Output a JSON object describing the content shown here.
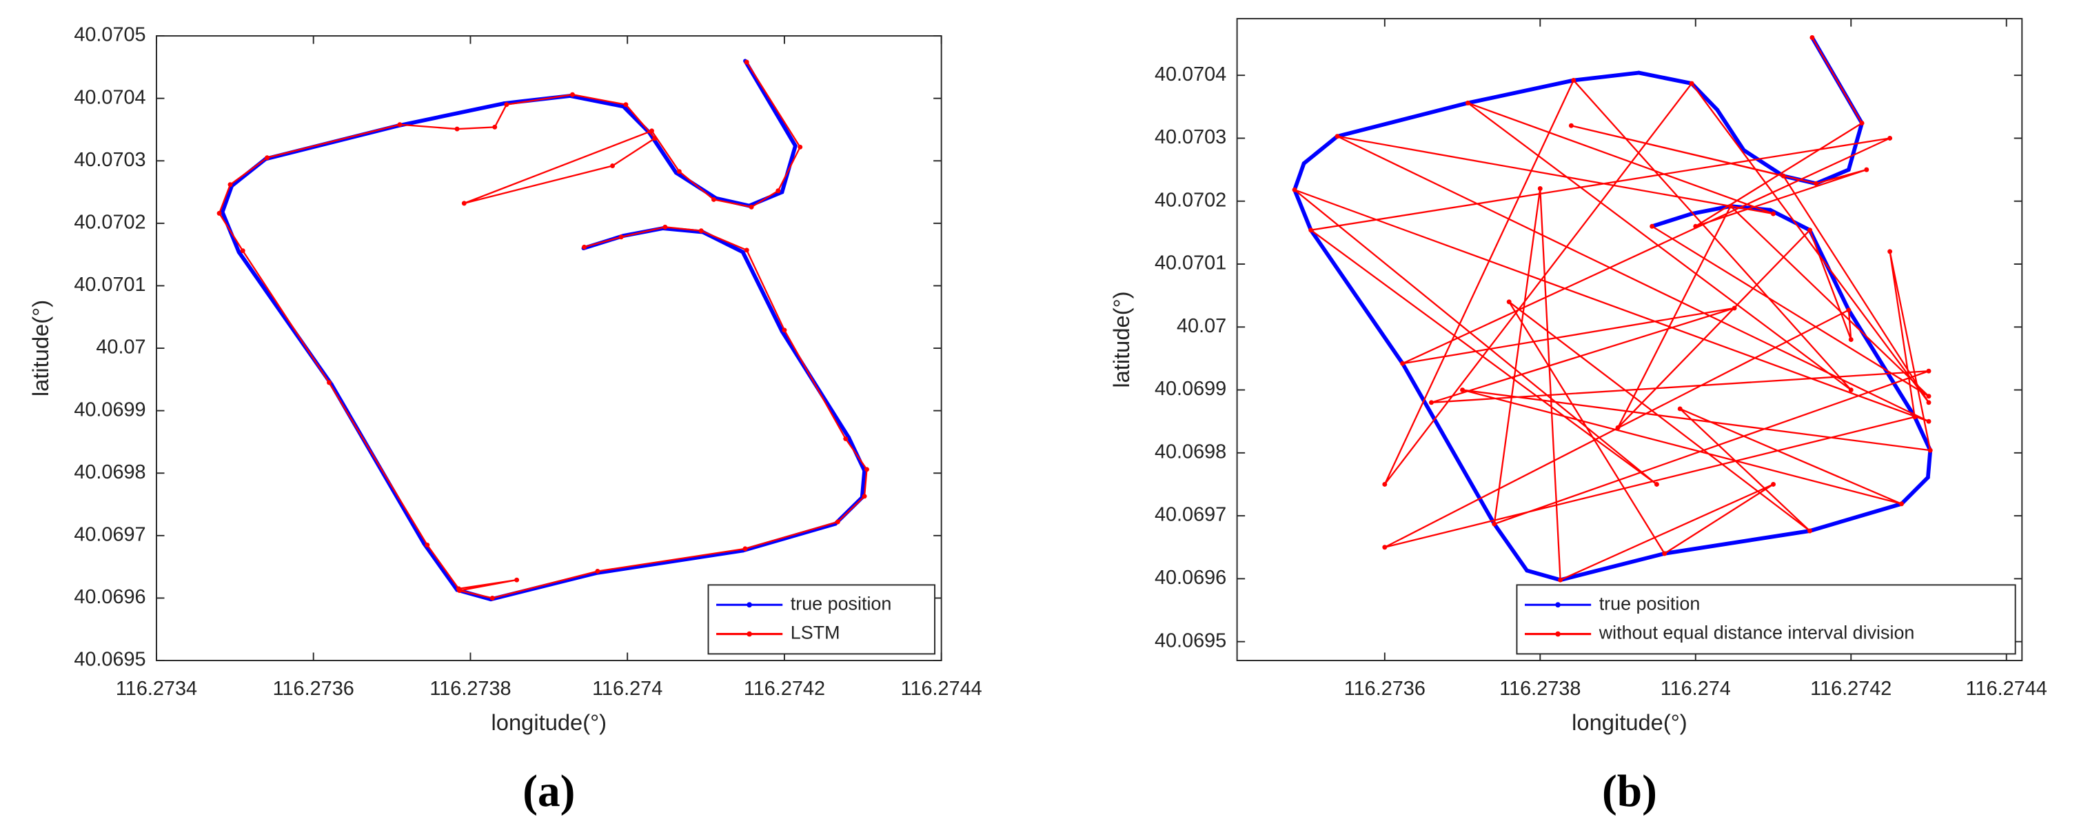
{
  "chart_data": [
    {
      "type": "line",
      "label": "(a)",
      "x_label": "longitude(°)",
      "y_label": "latitude(°)",
      "xlim": [
        116.2734,
        116.2744
      ],
      "xticks": [
        116.2734,
        116.2736,
        116.2738,
        116.274,
        116.2742,
        116.2744
      ],
      "ylim": [
        40.0695,
        40.0705
      ],
      "yticks": [
        40.0695,
        40.0696,
        40.0697,
        40.0698,
        40.0699,
        40.07,
        40.0701,
        40.0702,
        40.0703,
        40.0704,
        40.0705
      ],
      "legend": "lower right",
      "series": [
        {
          "name": "true position",
          "color": "#0000ff",
          "x": [
            116.27415,
            116.274214,
            116.274197,
            116.274155,
            116.274113,
            116.274062,
            116.274028,
            116.273995,
            116.273927,
            116.273843,
            116.273707,
            116.273539,
            116.273496,
            116.273484,
            116.273505,
            116.273623,
            116.273741,
            116.273783,
            116.273826,
            116.27396,
            116.274147,
            116.274265,
            116.274299,
            116.274302,
            116.274282,
            116.274197,
            116.274147,
            116.274096,
            116.274045,
            116.273995,
            116.273944
          ],
          "values": [
            40.07046,
            40.070324,
            40.07025,
            40.070228,
            40.07024,
            40.070281,
            40.070345,
            40.070387,
            40.070404,
            40.070392,
            40.070356,
            40.070303,
            40.07026,
            40.070218,
            40.070154,
            40.069942,
            40.069687,
            40.069613,
            40.069598,
            40.06964,
            40.069676,
            40.069719,
            40.069761,
            40.069804,
            40.069857,
            40.070027,
            40.070154,
            40.070186,
            40.070192,
            40.07018,
            40.07016
          ]
        },
        {
          "name": "LSTM",
          "color": "#ff0000",
          "x": [
            116.274152,
            116.27422,
            116.274192,
            116.274158,
            116.27411,
            116.274066,
            116.274031,
            116.273792,
            116.273981,
            116.274035,
            116.273998,
            116.27393,
            116.273846,
            116.273831,
            116.273783,
            116.27371,
            116.273541,
            116.273494,
            116.27348,
            116.27351,
            116.27362,
            116.273745,
            116.273785,
            116.273859,
            116.273786,
            116.273828,
            116.273962,
            116.27415,
            116.274268,
            116.274302,
            116.274305,
            116.274278,
            116.2742,
            116.274152,
            116.274094,
            116.274048,
            116.273992,
            116.273945
          ],
          "values": [
            40.070458,
            40.070322,
            40.070252,
            40.070226,
            40.070238,
            40.070283,
            40.070348,
            40.070232,
            40.070292,
            40.070336,
            40.07039,
            40.070406,
            40.07039,
            40.070354,
            40.070351,
            40.070358,
            40.070305,
            40.070262,
            40.070216,
            40.070156,
            40.069945,
            40.069685,
            40.069615,
            40.069629,
            40.069612,
            40.0696,
            40.069643,
            40.069679,
            40.069722,
            40.069763,
            40.069806,
            40.069855,
            40.070029,
            40.070157,
            40.070188,
            40.070194,
            40.070178,
            40.070162
          ]
        }
      ]
    },
    {
      "type": "line",
      "label": "(b)",
      "x_label": "longitude(°)",
      "y_label": "latitude(°)",
      "xlim": [
        116.27341,
        116.27442
      ],
      "xticks": [
        116.2736,
        116.2738,
        116.274,
        116.2742,
        116.2744
      ],
      "ylim": [
        40.06947,
        40.07049
      ],
      "yticks": [
        40.0695,
        40.0696,
        40.0697,
        40.0698,
        40.0699,
        40.07,
        40.0701,
        40.0702,
        40.0703,
        40.0704
      ],
      "legend": "lower right",
      "series": [
        {
          "name": "true position",
          "color": "#0000ff",
          "x": [
            116.27415,
            116.274214,
            116.274197,
            116.274155,
            116.274113,
            116.274062,
            116.274028,
            116.273995,
            116.273927,
            116.273843,
            116.273707,
            116.273539,
            116.273496,
            116.273484,
            116.273505,
            116.273623,
            116.273741,
            116.273783,
            116.273826,
            116.27396,
            116.274147,
            116.274265,
            116.274299,
            116.274302,
            116.274282,
            116.274197,
            116.274147,
            116.274096,
            116.274045,
            116.273995,
            116.273944
          ],
          "values": [
            40.07046,
            40.070324,
            40.07025,
            40.070228,
            40.07024,
            40.070281,
            40.070345,
            40.070387,
            40.070404,
            40.070392,
            40.070356,
            40.070303,
            40.07026,
            40.070218,
            40.070154,
            40.069942,
            40.069687,
            40.069613,
            40.069598,
            40.06964,
            40.069676,
            40.069719,
            40.069761,
            40.069804,
            40.069857,
            40.070027,
            40.070154,
            40.070186,
            40.070192,
            40.07018,
            40.07016
          ]
        },
        {
          "name": "without equal distance interval division",
          "color": "#ff0000",
          "x": [
            116.27415,
            116.274214,
            116.274,
            116.27422,
            116.274155,
            116.27384,
            116.274113,
            116.2743,
            116.273995,
            116.2736,
            116.273843,
            116.2742,
            116.273707,
            116.2741,
            116.273539,
            116.2743,
            116.273484,
            116.27395,
            116.273505,
            116.27425,
            116.273623,
            116.27405,
            116.27366,
            116.2743,
            116.273741,
            116.2738,
            116.273826,
            116.2741,
            116.27396,
            116.27376,
            116.274147,
            116.27398,
            116.274265,
            116.2737,
            116.274302,
            116.27425,
            116.274282,
            116.2736,
            116.274197,
            116.2742,
            116.274147,
            116.2739,
            116.274045,
            116.2743,
            116.273944
          ],
          "values": [
            40.07046,
            40.070324,
            40.07016,
            40.07025,
            40.070228,
            40.07032,
            40.07024,
            40.06988,
            40.070387,
            40.06975,
            40.070392,
            40.0699,
            40.070356,
            40.07018,
            40.070303,
            40.06985,
            40.070218,
            40.06975,
            40.070154,
            40.0703,
            40.069942,
            40.07003,
            40.06988,
            40.06993,
            40.069687,
            40.07022,
            40.069598,
            40.06975,
            40.06964,
            40.07004,
            40.069676,
            40.06987,
            40.069719,
            40.0699,
            40.069804,
            40.07012,
            40.069857,
            40.06965,
            40.070027,
            40.06998,
            40.070154,
            40.06984,
            40.070192,
            40.06989,
            40.07016
          ]
        }
      ]
    }
  ]
}
